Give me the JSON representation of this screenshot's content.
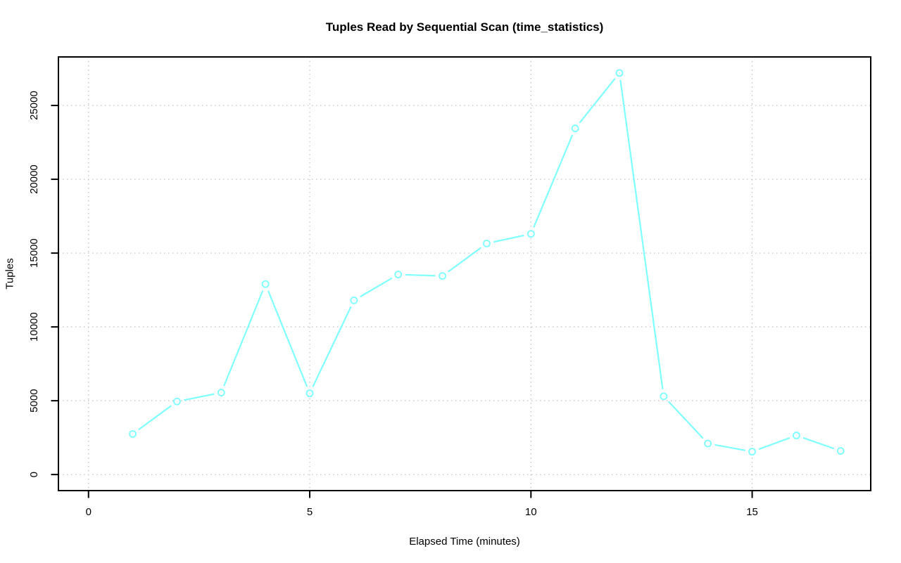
{
  "chart_data": {
    "type": "line",
    "title": "Tuples Read by Sequential Scan (time_statistics)",
    "xlabel": "Elapsed Time (minutes)",
    "ylabel": "Tuples",
    "x": [
      1,
      2,
      3,
      4,
      5,
      6,
      7,
      8,
      9,
      10,
      11,
      12,
      13,
      14,
      15,
      16,
      17
    ],
    "y": [
      2750,
      4950,
      5550,
      12900,
      5500,
      11800,
      13550,
      13450,
      15650,
      16300,
      23450,
      27200,
      5300,
      2100,
      1550,
      2650,
      1600
    ],
    "xticks": [
      0,
      5,
      10,
      15
    ],
    "yticks": [
      0,
      5000,
      10000,
      15000,
      20000,
      25000
    ],
    "xlim": [
      -0.68,
      17.68
    ],
    "ylim": [
      -1088,
      28288
    ],
    "grid": "dotted",
    "legend": "none",
    "line_style": "both-line-and-open-circle-markers",
    "colors": {
      "line": "#80FFFF",
      "marker_stroke": "#80FFFF",
      "marker_fill": "#FFFFFF",
      "grid": "#C8C8C8",
      "axis": "#000000",
      "text": "#000000",
      "background": "#FFFFFF"
    }
  }
}
